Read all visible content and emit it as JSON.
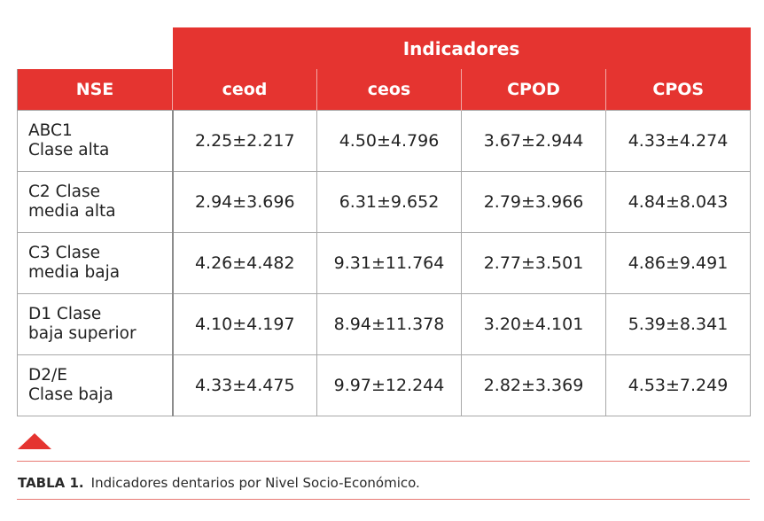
{
  "table": {
    "group_header": "Indicadores",
    "row_header": "NSE",
    "columns": [
      "ceod",
      "ceos",
      "CPOD",
      "CPOS"
    ],
    "rows": [
      {
        "label_line1": "ABC1",
        "label_line2": "Clase alta",
        "values": [
          "2.25±2.217",
          "4.50±4.796",
          "3.67±2.944",
          "4.33±4.274"
        ]
      },
      {
        "label_line1": "C2 Clase",
        "label_line2": "media alta",
        "values": [
          "2.94±3.696",
          "6.31±9.652",
          "2.79±3.966",
          "4.84±8.043"
        ]
      },
      {
        "label_line1": "C3 Clase",
        "label_line2": "media baja",
        "values": [
          "4.26±4.482",
          "9.31±11.764",
          "2.77±3.501",
          "4.86±9.491"
        ]
      },
      {
        "label_line1": "D1 Clase",
        "label_line2": "baja superior",
        "values": [
          "4.10±4.197",
          "8.94±11.378",
          "3.20±4.101",
          "5.39±8.341"
        ]
      },
      {
        "label_line1": "D2/E",
        "label_line2": "Clase baja",
        "values": [
          "4.33±4.475",
          "9.97±12.244",
          "2.82±3.369",
          "4.53±7.249"
        ]
      }
    ]
  },
  "caption": {
    "label": "TABLA 1.",
    "text": "Indicadores dentarios por Nivel Socio-Económico."
  },
  "colors": {
    "accent": "#e53430",
    "rule": "#e87a74"
  }
}
